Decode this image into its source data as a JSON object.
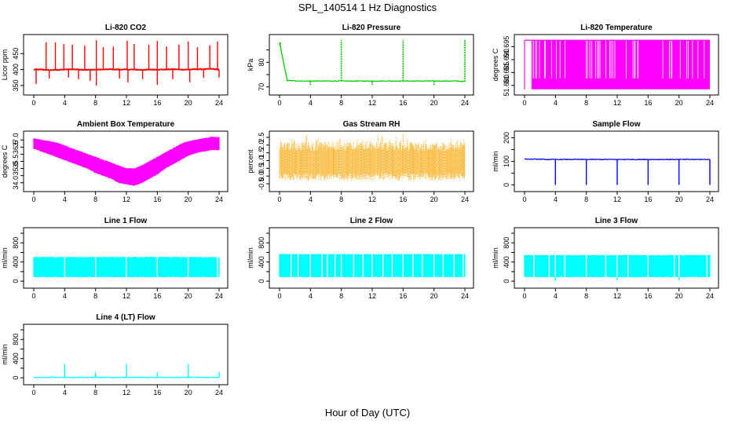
{
  "title": "SPL_140514  1 Hz Diagnostics",
  "xlabel": "Hour of Day (UTC)",
  "chart_data": [
    {
      "type": "line",
      "title": "Li-820 CO2",
      "ylabel": "Licor ppm",
      "xlim": [
        0,
        24
      ],
      "ylim": [
        330,
        500
      ],
      "xticks": [
        0,
        4,
        8,
        12,
        16,
        20,
        24
      ],
      "xtick_labels": [
        "0",
        "4",
        "8",
        "12",
        "16",
        "20",
        "24"
      ],
      "yticks": [
        350,
        400,
        450
      ],
      "ytick_labels": [
        "350",
        "400",
        "450"
      ],
      "color": "#ff0000",
      "style": "line",
      "series": [
        {
          "name": "",
          "values": [
            400,
            400,
            398,
            399,
            400,
            401,
            400,
            399,
            400,
            400,
            401,
            400,
            400,
            400,
            399,
            400,
            400,
            400,
            401,
            400,
            400,
            401,
            401,
            402,
            400
          ]
        }
      ],
      "spikes": [
        [
          0.3,
          355
        ],
        [
          1.6,
          485
        ],
        [
          2.0,
          372
        ],
        [
          2.8,
          485
        ],
        [
          3.9,
          480
        ],
        [
          4.5,
          375
        ],
        [
          5.0,
          478
        ],
        [
          5.8,
          370
        ],
        [
          6.6,
          475
        ],
        [
          7.3,
          365
        ],
        [
          8.1,
          492
        ],
        [
          8.1,
          350
        ],
        [
          9.0,
          470
        ],
        [
          10.3,
          472
        ],
        [
          11.1,
          372
        ],
        [
          12.1,
          490
        ],
        [
          12.2,
          360
        ],
        [
          13.0,
          480
        ],
        [
          14.1,
          370
        ],
        [
          14.9,
          478
        ],
        [
          16.0,
          490
        ],
        [
          16.0,
          352
        ],
        [
          17.2,
          472
        ],
        [
          18.0,
          370
        ],
        [
          18.8,
          478
        ],
        [
          20.0,
          488
        ],
        [
          20.2,
          360
        ],
        [
          21.2,
          470
        ],
        [
          22.0,
          374
        ],
        [
          22.8,
          476
        ],
        [
          23.8,
          488
        ],
        [
          24.0,
          375
        ]
      ]
    },
    {
      "type": "line",
      "title": "Li-820 Pressure",
      "ylabel": "kPa",
      "xlim": [
        0,
        24
      ],
      "ylim": [
        68,
        90
      ],
      "xticks": [
        0,
        4,
        8,
        12,
        16,
        20,
        24
      ],
      "xtick_labels": [
        "0",
        "4",
        "8",
        "12",
        "16",
        "20",
        "24"
      ],
      "yticks": [
        70,
        75,
        80,
        85
      ],
      "ytick_labels": [
        "70",
        "",
        "80",
        ""
      ],
      "color": "#00cc00",
      "style": "line",
      "series": [
        {
          "name": "",
          "values": [
            88,
            72.6,
            72.5,
            72.4,
            72.4,
            72.4,
            72.4,
            72.4,
            72.4,
            72.4,
            72.4,
            72.4,
            72.4,
            72.4,
            72.4,
            72.4,
            72.4,
            72.4,
            72.4,
            72.4,
            72.4,
            72.4,
            72.4,
            72.4,
            72.2
          ]
        }
      ],
      "spikes": [
        [
          0.1,
          88
        ],
        [
          4.0,
          70.5
        ],
        [
          8.0,
          89
        ],
        [
          12.0,
          70.5
        ],
        [
          16.0,
          89
        ],
        [
          20.0,
          70.5
        ],
        [
          24.0,
          89
        ]
      ]
    },
    {
      "type": "line",
      "title": "Li-820 Temperature",
      "ylabel": "degrees C",
      "xlim": [
        0,
        24
      ],
      "ylim": [
        51.6775,
        51.6985
      ],
      "xticks": [
        0,
        4,
        8,
        12,
        16,
        20,
        24
      ],
      "xtick_labels": [
        "0",
        "4",
        "8",
        "12",
        "16",
        "20",
        "24"
      ],
      "yticks": [
        51.68,
        51.685,
        51.69,
        51.695
      ],
      "ytick_labels": [
        "51.680",
        "51.685",
        "51.690",
        "51.695"
      ],
      "color": "#ff00ff",
      "style": "flicker",
      "band": [
        51.6785,
        51.6975
      ]
    },
    {
      "type": "line",
      "title": "Ambient Box Temperature",
      "ylabel": "degrees C",
      "xlim": [
        0,
        24
      ],
      "ylim": [
        33.6,
        37.4
      ],
      "xticks": [
        0,
        4,
        8,
        12,
        16,
        20,
        24
      ],
      "xtick_labels": [
        "0",
        "4",
        "8",
        "12",
        "16",
        "20",
        "24"
      ],
      "yticks": [
        34.0,
        34.5,
        35.0,
        35.5,
        36.0,
        36.5,
        37.0
      ],
      "ytick_labels": [
        "34.0",
        "",
        "35.0",
        "35.5",
        "",
        "36.5",
        "37.0"
      ],
      "color": "#ff00ff",
      "style": "band",
      "series": [
        {
          "name": "upper",
          "values": [
            37.1,
            37.0,
            36.9,
            36.8,
            36.6,
            36.4,
            36.2,
            36.0,
            35.8,
            35.6,
            35.4,
            35.2,
            35.0,
            35.0,
            35.2,
            35.5,
            35.8,
            36.1,
            36.4,
            36.7,
            36.9,
            37.0,
            37.1,
            37.2,
            37.2
          ]
        },
        {
          "name": "lower",
          "values": [
            36.4,
            36.2,
            36.0,
            35.8,
            35.6,
            35.4,
            35.2,
            35.0,
            34.7,
            34.5,
            34.3,
            34.0,
            33.9,
            33.8,
            34.0,
            34.3,
            34.6,
            35.0,
            35.3,
            35.6,
            35.9,
            36.1,
            36.2,
            36.3,
            36.3
          ]
        }
      ]
    },
    {
      "type": "line",
      "title": "Gas Stream RH",
      "ylabel": "percent",
      "xlim": [
        0,
        24
      ],
      "ylim": [
        -0.8,
        2.7
      ],
      "xticks": [
        0,
        4,
        8,
        12,
        16,
        20,
        24
      ],
      "xtick_labels": [
        "0",
        "4",
        "8",
        "12",
        "16",
        "20",
        "24"
      ],
      "yticks": [
        -0.5,
        0.0,
        0.5,
        1.0,
        1.5,
        2.0,
        2.5
      ],
      "ytick_labels": [
        "-0.5",
        "0.0",
        "0.5",
        "1.0",
        "1.5",
        "2.0",
        "2.5"
      ],
      "color": "#ffa500",
      "style": "noise",
      "band": [
        -0.3,
        2.2
      ]
    },
    {
      "type": "line",
      "title": "Sample Flow",
      "ylabel": "ml/min",
      "xlim": [
        0,
        24
      ],
      "ylim": [
        -15,
        215
      ],
      "xticks": [
        0,
        4,
        8,
        12,
        16,
        20,
        24
      ],
      "xtick_labels": [
        "0",
        "4",
        "8",
        "12",
        "16",
        "20",
        "24"
      ],
      "yticks": [
        0,
        50,
        100,
        150,
        200
      ],
      "ytick_labels": [
        "0",
        "",
        "100",
        "",
        "200"
      ],
      "color": "#0000ff",
      "style": "line",
      "series": [
        {
          "name": "",
          "values": [
            110,
            109,
            109,
            108,
            108,
            108,
            108,
            108,
            108,
            108,
            108,
            108,
            108,
            108,
            108,
            108,
            108,
            108,
            108,
            108,
            108,
            108,
            108,
            108,
            108
          ]
        }
      ],
      "spikes": [
        [
          4.0,
          0
        ],
        [
          8.0,
          0
        ],
        [
          12.0,
          0
        ],
        [
          16.0,
          0
        ],
        [
          20.0,
          0
        ],
        [
          24.0,
          0
        ]
      ]
    },
    {
      "type": "line",
      "title": "Line 1 Flow",
      "ylabel": "ml/min",
      "xlim": [
        0,
        24
      ],
      "ylim": [
        -80,
        1050
      ],
      "xticks": [
        0,
        4,
        8,
        12,
        16,
        20,
        24
      ],
      "xtick_labels": [
        "0",
        "4",
        "8",
        "12",
        "16",
        "20",
        "24"
      ],
      "yticks": [
        0,
        200,
        400,
        600,
        800,
        1000
      ],
      "ytick_labels": [
        "0",
        "",
        "400",
        "",
        "800",
        ""
      ],
      "color": "#00ffff",
      "style": "band",
      "series": [
        {
          "name": "upper",
          "values": [
            500,
            500,
            500,
            500,
            500,
            500,
            500,
            500,
            500,
            500,
            500,
            500,
            500,
            500,
            500,
            500,
            500,
            500,
            500,
            500,
            500,
            500,
            500,
            500,
            500
          ]
        },
        {
          "name": "lower",
          "values": [
            90,
            90,
            90,
            90,
            90,
            90,
            90,
            90,
            90,
            90,
            90,
            90,
            90,
            90,
            90,
            90,
            90,
            90,
            90,
            90,
            90,
            90,
            90,
            90,
            90
          ]
        }
      ],
      "gaps": [
        4.0,
        8.0,
        12.0,
        16.0,
        20.0,
        23.8
      ]
    },
    {
      "type": "line",
      "title": "Line 2 Flow",
      "ylabel": "ml/min",
      "xlim": [
        0,
        24
      ],
      "ylim": [
        -80,
        1050
      ],
      "xticks": [
        0,
        4,
        8,
        12,
        16,
        20,
        24
      ],
      "xtick_labels": [
        "0",
        "4",
        "8",
        "12",
        "16",
        "20",
        "24"
      ],
      "yticks": [
        0,
        200,
        400,
        600,
        800,
        1000
      ],
      "ytick_labels": [
        "0",
        "",
        "400",
        "",
        "800",
        ""
      ],
      "color": "#00ffff",
      "style": "band",
      "series": [
        {
          "name": "upper",
          "values": [
            560,
            560,
            560,
            560,
            560,
            560,
            560,
            560,
            560,
            560,
            560,
            560,
            560,
            560,
            560,
            560,
            560,
            560,
            560,
            560,
            560,
            560,
            560,
            560,
            560
          ]
        },
        {
          "name": "lower",
          "values": [
            90,
            90,
            90,
            90,
            90,
            90,
            90,
            90,
            90,
            90,
            90,
            90,
            90,
            90,
            90,
            90,
            90,
            90,
            90,
            90,
            90,
            90,
            90,
            90,
            90
          ]
        }
      ],
      "gaps": [
        1.5,
        2.4,
        4.0,
        5.5,
        6.2,
        7.2,
        8.0,
        9.6,
        10.8,
        12.0,
        13.4,
        14.6,
        16.0,
        17.3,
        18.5,
        20.0,
        21.2,
        22.6,
        23.8
      ]
    },
    {
      "type": "line",
      "title": "Line 3 Flow",
      "ylabel": "ml/min",
      "xlim": [
        0,
        24
      ],
      "ylim": [
        -80,
        1050
      ],
      "xticks": [
        0,
        4,
        8,
        12,
        16,
        20,
        24
      ],
      "xtick_labels": [
        "0",
        "4",
        "8",
        "12",
        "16",
        "20",
        "24"
      ],
      "yticks": [
        0,
        200,
        400,
        600,
        800,
        1000
      ],
      "ytick_labels": [
        "0",
        "",
        "400",
        "",
        "800",
        ""
      ],
      "color": "#00ffff",
      "style": "band",
      "series": [
        {
          "name": "upper",
          "values": [
            540,
            540,
            540,
            540,
            540,
            540,
            540,
            540,
            540,
            540,
            540,
            540,
            540,
            540,
            540,
            540,
            540,
            540,
            540,
            540,
            540,
            540,
            540,
            540,
            540
          ]
        },
        {
          "name": "lower",
          "values": [
            90,
            90,
            90,
            90,
            90,
            90,
            90,
            90,
            90,
            90,
            90,
            90,
            90,
            90,
            90,
            90,
            90,
            90,
            90,
            90,
            90,
            90,
            90,
            90,
            90
          ]
        }
      ],
      "gaps": [
        1.2,
        3.2,
        4.0,
        5.2,
        8.0,
        10.5,
        12.0,
        13.4,
        16.0,
        19.4,
        20.0,
        23.6
      ],
      "spikes": [
        [
          4.0,
          10
        ],
        [
          12.0,
          20
        ],
        [
          20.0,
          20
        ]
      ]
    },
    {
      "type": "line",
      "title": "Line 4 (LT) Flow",
      "ylabel": "ml/min",
      "xlim": [
        0,
        24
      ],
      "ylim": [
        -80,
        1050
      ],
      "xticks": [
        0,
        4,
        8,
        12,
        16,
        20,
        24
      ],
      "xtick_labels": [
        "0",
        "4",
        "8",
        "12",
        "16",
        "20",
        "24"
      ],
      "yticks": [
        0,
        200,
        400,
        600,
        800,
        1000
      ],
      "ytick_labels": [
        "0",
        "",
        "400",
        "",
        "800",
        ""
      ],
      "color": "#00ffff",
      "style": "line",
      "series": [
        {
          "name": "",
          "values": [
            8,
            8,
            8,
            8,
            8,
            8,
            8,
            8,
            8,
            8,
            8,
            8,
            8,
            8,
            8,
            8,
            8,
            8,
            8,
            8,
            8,
            8,
            8,
            8,
            8
          ]
        }
      ],
      "spikes": [
        [
          4.0,
          290
        ],
        [
          8.0,
          110
        ],
        [
          12.0,
          290
        ],
        [
          16.0,
          110
        ],
        [
          20.0,
          290
        ],
        [
          24.0,
          120
        ]
      ]
    }
  ]
}
